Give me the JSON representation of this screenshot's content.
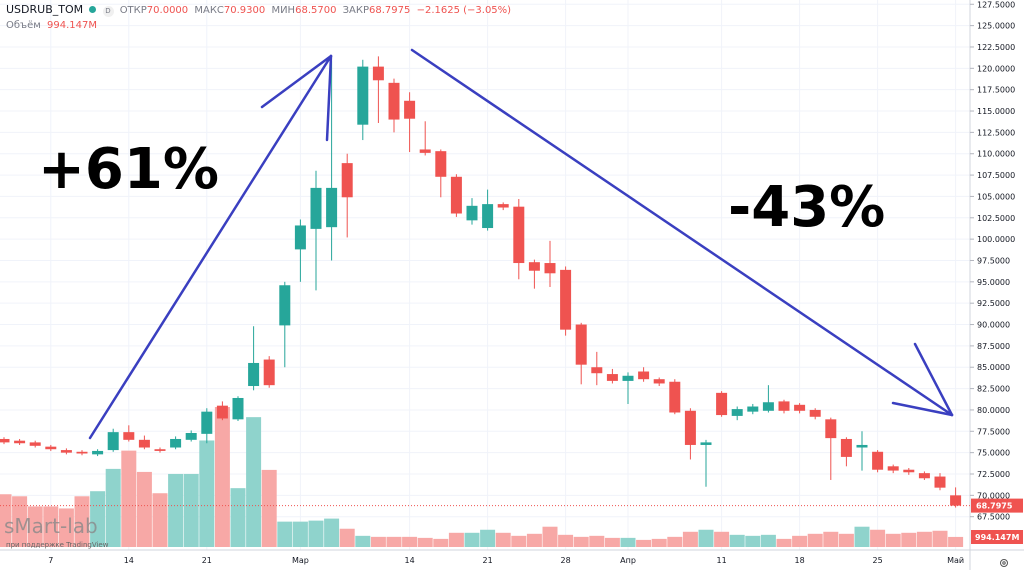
{
  "chart_data": {
    "type": "candlestick",
    "title": "USDRUB_TOM",
    "interval": "D",
    "header": {
      "open_key": "ОТКР",
      "open": "70.0000",
      "high_key": "МАКС",
      "high": "70.9300",
      "low_key": "МИН",
      "low": "68.5700",
      "close_key": "ЗАКР",
      "close": "68.7975",
      "change": "−2.1625 (−3.05%)",
      "volume_key": "Объём",
      "volume": "994.147M"
    },
    "annotations": [
      "+61%",
      "-43%"
    ],
    "watermark": "sMart-lab",
    "watermark_sub": "при поддержке TradingView",
    "categories": [
      null,
      null,
      null,
      "7",
      null,
      null,
      null,
      null,
      "14",
      null,
      null,
      null,
      null,
      "21",
      null,
      null,
      null,
      null,
      null,
      "Мар",
      null,
      null,
      null,
      null,
      null,
      null,
      "14",
      null,
      null,
      null,
      null,
      "21",
      null,
      null,
      null,
      null,
      "28",
      null,
      null,
      null,
      "Апр",
      null,
      null,
      null,
      null,
      null,
      "11",
      null,
      null,
      null,
      null,
      "18",
      null,
      null,
      null,
      null,
      "25",
      null,
      null,
      null,
      null,
      "Май"
    ],
    "open": [
      76.6,
      76.4,
      76.2,
      75.7,
      75.3,
      75.1,
      74.8,
      75.3,
      77.4,
      76.5,
      75.4,
      75.6,
      76.5,
      77.2,
      80.5,
      78.9,
      82.8,
      85.9,
      89.9,
      98.8,
      101.2,
      101.4,
      108.9,
      113.4,
      120.2,
      118.3,
      116.2,
      110.5,
      110.3,
      107.3,
      102.2,
      101.3,
      104.1,
      103.8,
      97.3,
      97.2,
      96.4,
      90.0,
      85.0,
      84.2,
      83.4,
      84.5,
      83.6,
      83.3,
      79.9,
      75.9,
      82.0,
      79.3,
      79.8,
      79.9,
      81.0,
      80.6,
      80.0,
      78.9,
      76.6,
      75.6,
      75.1,
      73.4,
      73.0,
      72.6,
      72.2,
      70.0
    ],
    "high": [
      76.8,
      76.6,
      76.4,
      75.9,
      75.5,
      75.3,
      75.4,
      77.8,
      78.2,
      77.0,
      75.6,
      76.9,
      77.6,
      80.2,
      81.0,
      81.6,
      89.8,
      86.3,
      95.0,
      102.3,
      108.0,
      120.9,
      110.0,
      121.0,
      121.4,
      118.8,
      117.2,
      113.8,
      110.5,
      107.6,
      104.8,
      105.8,
      104.3,
      104.7,
      97.6,
      99.8,
      96.8,
      90.2,
      86.8,
      84.8,
      84.4,
      85.0,
      83.8,
      83.6,
      80.2,
      76.5,
      82.2,
      80.4,
      80.7,
      82.9,
      81.2,
      80.8,
      80.2,
      79.1,
      76.8,
      77.5,
      75.3,
      73.6,
      73.2,
      72.8,
      72.6,
      70.93
    ],
    "low": [
      76.0,
      75.9,
      75.6,
      75.2,
      74.8,
      74.7,
      74.6,
      75.1,
      76.3,
      75.4,
      75.0,
      75.4,
      76.3,
      76.1,
      78.8,
      78.7,
      82.3,
      82.6,
      85.0,
      95.0,
      94.0,
      97.5,
      100.2,
      111.6,
      113.6,
      112.5,
      110.2,
      109.8,
      104.9,
      102.6,
      101.7,
      101.0,
      103.4,
      95.3,
      94.2,
      94.4,
      88.7,
      83.0,
      82.9,
      83.1,
      80.7,
      83.3,
      82.8,
      79.5,
      74.2,
      71.0,
      79.2,
      78.8,
      79.5,
      79.7,
      79.6,
      79.6,
      78.9,
      71.8,
      73.4,
      72.9,
      72.7,
      72.6,
      72.4,
      71.8,
      70.6,
      68.57
    ],
    "close": [
      76.2,
      76.1,
      75.8,
      75.4,
      75.0,
      74.9,
      75.2,
      77.4,
      76.5,
      75.6,
      75.2,
      76.6,
      77.3,
      79.8,
      79.0,
      81.4,
      85.5,
      82.9,
      94.6,
      101.6,
      106.0,
      106.0,
      104.9,
      120.2,
      118.6,
      114.0,
      114.1,
      110.1,
      107.3,
      103.0,
      103.9,
      104.1,
      103.7,
      97.2,
      96.3,
      96.0,
      89.4,
      85.3,
      84.3,
      83.4,
      84.0,
      83.6,
      83.1,
      79.7,
      75.9,
      76.2,
      79.4,
      80.1,
      80.4,
      80.9,
      79.9,
      79.9,
      79.2,
      76.7,
      74.5,
      75.9,
      73.0,
      72.9,
      72.7,
      72.0,
      70.9,
      68.7975
    ],
    "volume": [
      5200,
      5000,
      4000,
      4000,
      3800,
      5000,
      5500,
      7700,
      9500,
      7400,
      5300,
      7200,
      7200,
      10500,
      13800,
      5800,
      12800,
      7600,
      2500,
      2500,
      2600,
      2800,
      1800,
      1100,
      1000,
      1000,
      1000,
      900,
      800,
      1400,
      1400,
      1700,
      1400,
      1100,
      1300,
      2000,
      1200,
      1000,
      1100,
      900,
      900,
      700,
      800,
      1000,
      1500,
      1700,
      1500,
      1200,
      1100,
      1200,
      800,
      1100,
      1300,
      1500,
      1300,
      2000,
      1700,
      1300,
      1400,
      1500,
      1600,
      994.147
    ],
    "up_color": "#26a69a",
    "down_color": "#ef5350",
    "volume_up_color": "#8fd3cc",
    "volume_down_color": "#f7a8a6",
    "grid": true,
    "ylim": [
      63.6,
      128.0
    ],
    "yticks": [
      {
        "value": 67.5,
        "label": "67.5000"
      },
      {
        "value": 70,
        "label": "70.0000"
      },
      {
        "value": 72.5,
        "label": "72.5000"
      },
      {
        "value": 75,
        "label": "75.0000"
      },
      {
        "value": 77.5,
        "label": "77.5000"
      },
      {
        "value": 80,
        "label": "80.0000"
      },
      {
        "value": 82.5,
        "label": "82.5000"
      },
      {
        "value": 85,
        "label": "85.0000"
      },
      {
        "value": 87.5,
        "label": "87.5000"
      },
      {
        "value": 90,
        "label": "90.0000"
      },
      {
        "value": 92.5,
        "label": "92.5000"
      },
      {
        "value": 95,
        "label": "95.0000"
      },
      {
        "value": 97.5,
        "label": "97.5000"
      },
      {
        "value": 100,
        "label": "100.0000"
      },
      {
        "value": 102.5,
        "label": "102.5000"
      },
      {
        "value": 105,
        "label": "105.0000"
      },
      {
        "value": 107.5,
        "label": "107.5000"
      },
      {
        "value": 110,
        "label": "110.0000"
      },
      {
        "value": 112.5,
        "label": "112.5000"
      },
      {
        "value": 115,
        "label": "115.0000"
      },
      {
        "value": 117.5,
        "label": "117.5000"
      },
      {
        "value": 120,
        "label": "120.0000"
      },
      {
        "value": 122.5,
        "label": "122.5000"
      },
      {
        "value": 125,
        "label": "125.0000"
      },
      {
        "value": 127.5,
        "label": "127.5000"
      }
    ]
  }
}
